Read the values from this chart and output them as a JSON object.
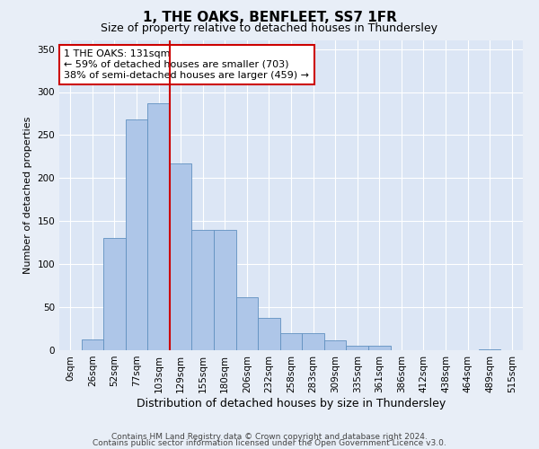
{
  "title1": "1, THE OAKS, BENFLEET, SS7 1FR",
  "title2": "Size of property relative to detached houses in Thundersley",
  "xlabel": "Distribution of detached houses by size in Thundersley",
  "ylabel": "Number of detached properties",
  "categories": [
    "0sqm",
    "26sqm",
    "52sqm",
    "77sqm",
    "103sqm",
    "129sqm",
    "155sqm",
    "180sqm",
    "206sqm",
    "232sqm",
    "258sqm",
    "283sqm",
    "309sqm",
    "335sqm",
    "361sqm",
    "386sqm",
    "412sqm",
    "438sqm",
    "464sqm",
    "489sqm",
    "515sqm"
  ],
  "values": [
    0,
    13,
    130,
    268,
    287,
    217,
    140,
    140,
    62,
    38,
    20,
    20,
    12,
    5,
    5,
    0,
    0,
    0,
    0,
    1,
    0
  ],
  "bar_color": "#aec6e8",
  "bar_edge_color": "#6090c0",
  "vline_x": 4.52,
  "vline_color": "#cc0000",
  "annotation_text": "1 THE OAKS: 131sqm\n← 59% of detached houses are smaller (703)\n38% of semi-detached houses are larger (459) →",
  "annotation_box_color": "#ffffff",
  "annotation_box_edge": "#cc0000",
  "ylim": [
    0,
    360
  ],
  "yticks": [
    0,
    50,
    100,
    150,
    200,
    250,
    300,
    350
  ],
  "footer1": "Contains HM Land Registry data © Crown copyright and database right 2024.",
  "footer2": "Contains public sector information licensed under the Open Government Licence v3.0.",
  "bg_color": "#e8eef7",
  "plot_bg_color": "#dce6f5",
  "title1_fontsize": 11,
  "title2_fontsize": 9,
  "annot_fontsize": 8,
  "ylabel_fontsize": 8,
  "xlabel_fontsize": 9,
  "tick_fontsize": 7.5,
  "footer_fontsize": 6.5
}
